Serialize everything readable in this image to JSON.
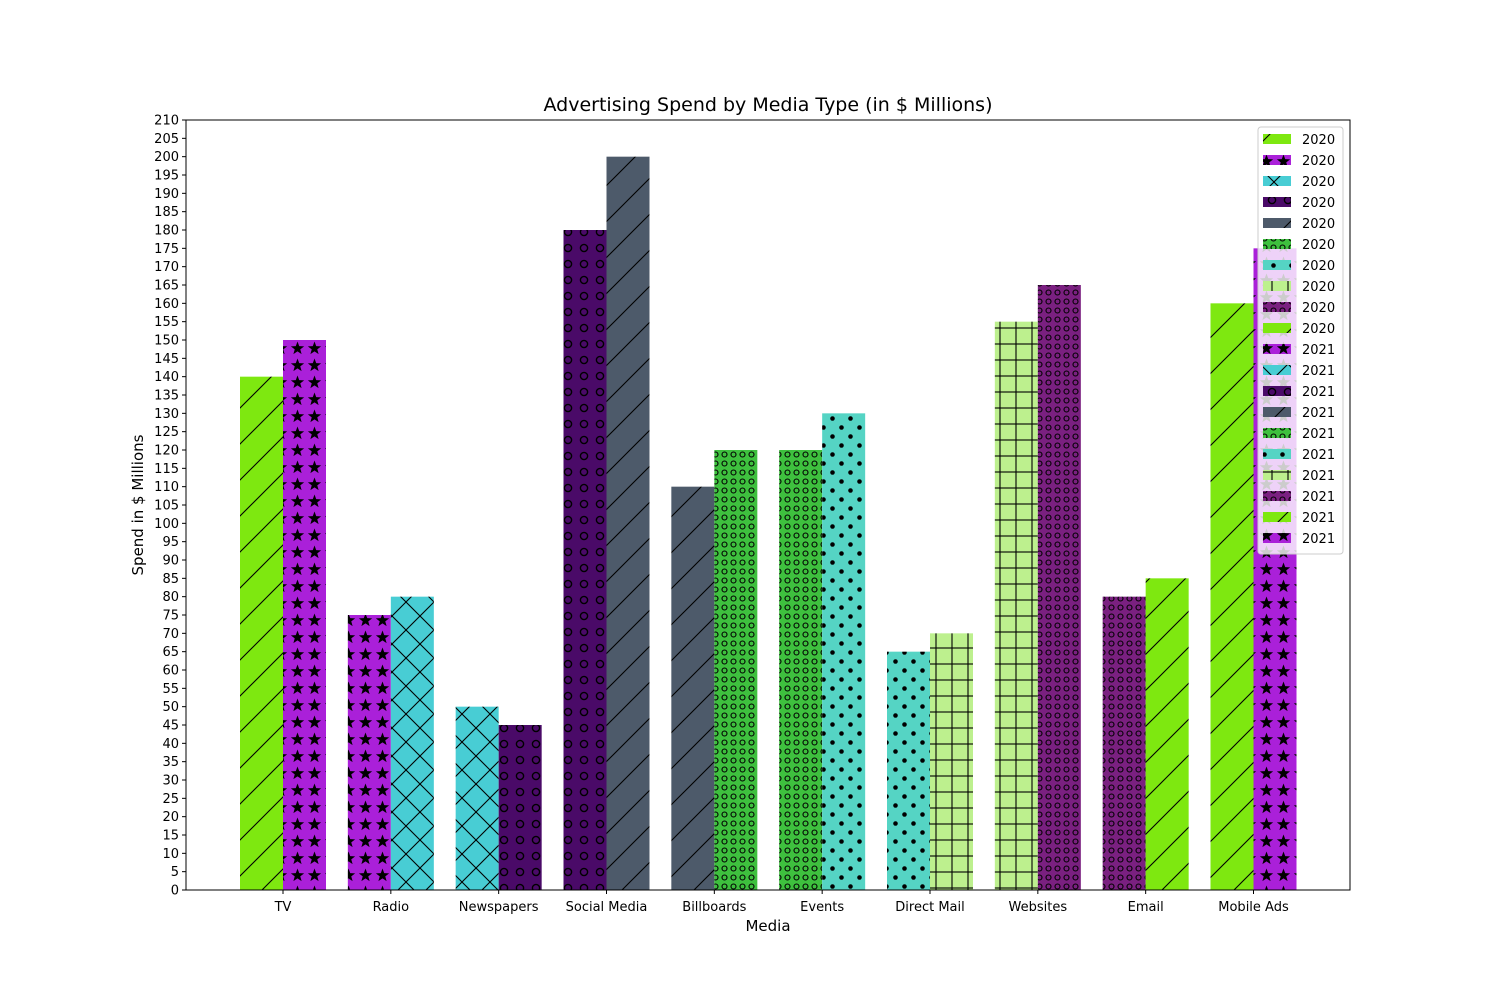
{
  "chart_data": {
    "type": "bar",
    "title": "Advertising Spend by Media Type (in $ Millions)",
    "xlabel": "Media",
    "ylabel": "Spend in $ Millions",
    "ylim": [
      0,
      210
    ],
    "ytick_step": 5,
    "grid": false,
    "legend_position": "top-right",
    "categories": [
      "TV",
      "Radio",
      "Newspapers",
      "Social Media",
      "Billboards",
      "Events",
      "Direct Mail",
      "Websites",
      "Email",
      "Mobile Ads"
    ],
    "series": [
      {
        "name": "2020",
        "values": [
          140,
          75,
          50,
          180,
          110,
          120,
          65,
          155,
          80,
          160
        ]
      },
      {
        "name": "2021",
        "values": [
          150,
          80,
          45,
          200,
          120,
          130,
          70,
          165,
          85,
          175
        ]
      }
    ],
    "bar_styles": {
      "2020": [
        {
          "color": "#7ee810",
          "hatch": "diag"
        },
        {
          "color": "#aa20d9",
          "hatch": "star"
        },
        {
          "color": "#48cdd4",
          "hatch": "cross"
        },
        {
          "color": "#4a0a68",
          "hatch": "ring"
        },
        {
          "color": "#4d5a6a",
          "hatch": "diag"
        },
        {
          "color": "#3ec03e",
          "hatch": "smallring"
        },
        {
          "color": "#55d4c4",
          "hatch": "dot"
        },
        {
          "color": "#bdf08e",
          "hatch": "grid"
        },
        {
          "color": "#7a2080",
          "hatch": "smallring"
        },
        {
          "color": "#7ee810",
          "hatch": "diag"
        }
      ],
      "2021": [
        {
          "color": "#aa20d9",
          "hatch": "star"
        },
        {
          "color": "#48cdd4",
          "hatch": "cross"
        },
        {
          "color": "#4a0a68",
          "hatch": "ring"
        },
        {
          "color": "#4d5a6a",
          "hatch": "diag"
        },
        {
          "color": "#3ec03e",
          "hatch": "smallring"
        },
        {
          "color": "#55d4c4",
          "hatch": "dot"
        },
        {
          "color": "#bdf08e",
          "hatch": "grid"
        },
        {
          "color": "#7a2080",
          "hatch": "smallring"
        },
        {
          "color": "#7ee810",
          "hatch": "diag"
        },
        {
          "color": "#aa20d9",
          "hatch": "star"
        }
      ]
    },
    "legend_entries": [
      {
        "label": "2020",
        "color": "#7ee810",
        "hatch": "diag"
      },
      {
        "label": "2020",
        "color": "#aa20d9",
        "hatch": "star"
      },
      {
        "label": "2020",
        "color": "#48cdd4",
        "hatch": "cross"
      },
      {
        "label": "2020",
        "color": "#4a0a68",
        "hatch": "ring"
      },
      {
        "label": "2020",
        "color": "#4d5a6a",
        "hatch": "diag"
      },
      {
        "label": "2020",
        "color": "#3ec03e",
        "hatch": "smallring"
      },
      {
        "label": "2020",
        "color": "#55d4c4",
        "hatch": "dot"
      },
      {
        "label": "2020",
        "color": "#bdf08e",
        "hatch": "grid"
      },
      {
        "label": "2020",
        "color": "#7a2080",
        "hatch": "smallring"
      },
      {
        "label": "2020",
        "color": "#7ee810",
        "hatch": "diag"
      },
      {
        "label": "2021",
        "color": "#aa20d9",
        "hatch": "star"
      },
      {
        "label": "2021",
        "color": "#48cdd4",
        "hatch": "cross"
      },
      {
        "label": "2021",
        "color": "#4a0a68",
        "hatch": "ring"
      },
      {
        "label": "2021",
        "color": "#4d5a6a",
        "hatch": "diag"
      },
      {
        "label": "2021",
        "color": "#3ec03e",
        "hatch": "smallring"
      },
      {
        "label": "2021",
        "color": "#55d4c4",
        "hatch": "dot"
      },
      {
        "label": "2021",
        "color": "#bdf08e",
        "hatch": "grid"
      },
      {
        "label": "2021",
        "color": "#7a2080",
        "hatch": "smallring"
      },
      {
        "label": "2021",
        "color": "#7ee810",
        "hatch": "diag"
      },
      {
        "label": "2021",
        "color": "#aa20d9",
        "hatch": "star"
      }
    ]
  }
}
